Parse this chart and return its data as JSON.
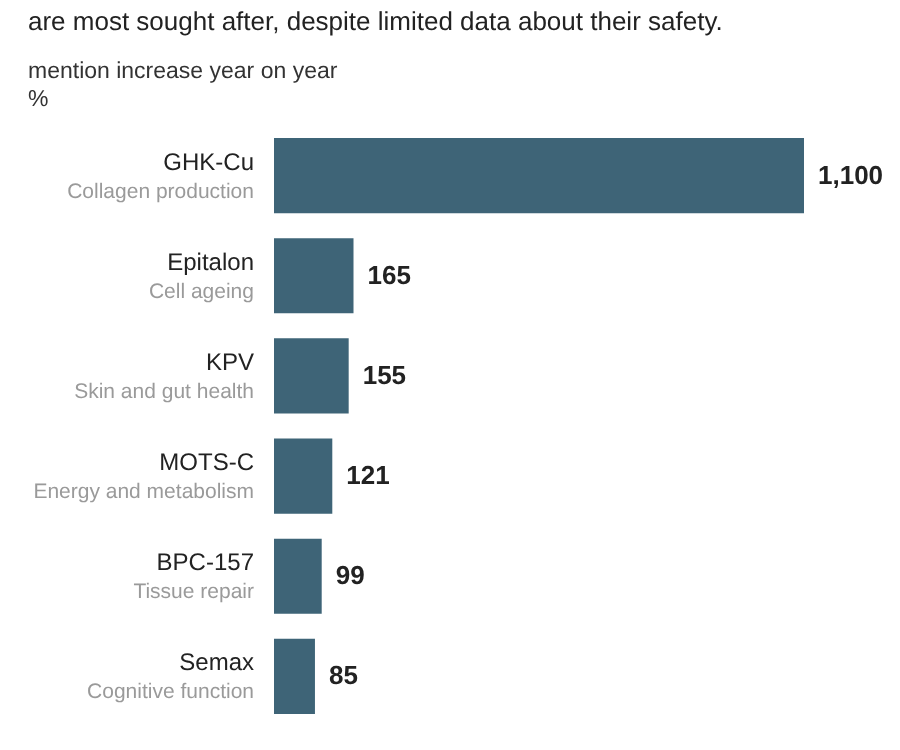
{
  "chart_data": {
    "type": "bar",
    "orientation": "horizontal",
    "title": "are most sought after, despite limited data about their safety.",
    "subtitle": "mention increase year on year",
    "xlabel": "%",
    "categories": [
      "GHK-Cu",
      "Epitalon",
      "KPV",
      "MOTS-C",
      "BPC-157",
      "Semax"
    ],
    "values": [
      1100,
      165,
      155,
      121,
      99,
      85
    ],
    "value_labels": [
      "1,100",
      "165",
      "155",
      "121",
      "99",
      "85"
    ],
    "color": "#3e6477",
    "annotations": [
      "Collagen production",
      "Cell ageing",
      "Skin and gut health",
      "Energy and metabolism",
      "Tissue repair",
      "Cognitive function"
    ]
  }
}
